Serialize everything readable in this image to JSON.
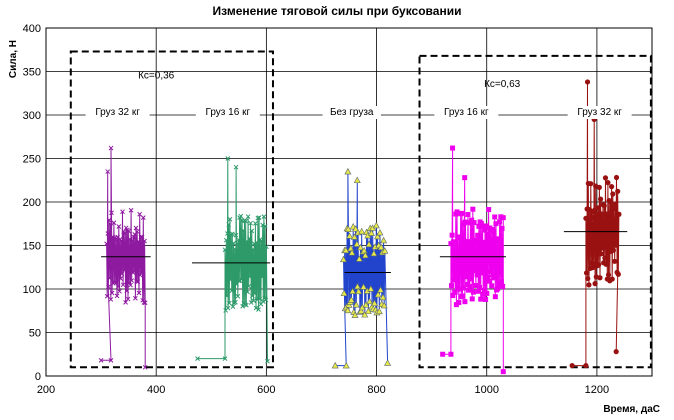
{
  "chart_data": {
    "type": "line",
    "title": "Изменение тяговой силы при буксовании",
    "xlabel": "Время, даС",
    "ylabel": "Сила, Н",
    "xlim": [
      200,
      1300
    ],
    "ylim": [
      0,
      400
    ],
    "x_ticks": [
      200,
      400,
      600,
      800,
      1000,
      1200
    ],
    "y_ticks": [
      0,
      50,
      100,
      150,
      200,
      250,
      300,
      350,
      400
    ],
    "grid": true,
    "series": [
      {
        "color": "#8e1aa0",
        "marker": "x",
        "x_range": [
          310,
          380
        ],
        "mean": 137,
        "mean_x": [
          300,
          390
        ],
        "peaks": [
          [
            318,
            262
          ],
          [
            312,
            235
          ]
        ],
        "baseline": {
          "x": [
            300,
            318
          ],
          "y": 18
        },
        "end": {
          "x": 380,
          "y": 10
        }
      },
      {
        "color": "#2e9a6a",
        "marker": "x",
        "x_range": [
          525,
          600
        ],
        "mean": 130,
        "mean_x": [
          465,
          607
        ],
        "peaks": [
          [
            530,
            250
          ],
          [
            545,
            240
          ]
        ],
        "baseline": {
          "x": [
            475,
            525
          ],
          "y": 20
        },
        "end": {
          "x": 602,
          "y": 17
        }
      },
      {
        "color": "#2244cc",
        "marker": "triangle",
        "x_range": [
          740,
          815
        ],
        "mean": 119,
        "mean_x": [
          742,
          826
        ],
        "peaks": [
          [
            748,
            235
          ],
          [
            765,
            225
          ]
        ],
        "baseline": {
          "x": [
            725,
            745
          ],
          "y": 12
        },
        "end": {
          "x": 820,
          "y": 15
        }
      },
      {
        "color": "#ee00ee",
        "marker": "square",
        "x_range": [
          935,
          1030
        ],
        "mean": 137,
        "mean_x": [
          915,
          1035
        ],
        "peaks": [
          [
            938,
            262
          ],
          [
            960,
            228
          ]
        ],
        "baseline": {
          "x": [
            920,
            935
          ],
          "y": 25
        },
        "end": {
          "x": 1030,
          "y": 5
        }
      },
      {
        "color": "#991111",
        "marker": "circle",
        "x_range": [
          1180,
          1240
        ],
        "mean": 166,
        "mean_x": [
          1140,
          1255
        ],
        "peaks": [
          [
            1183,
            338
          ],
          [
            1195,
            295
          ]
        ],
        "baseline": {
          "x": [
            1155,
            1180
          ],
          "y": 12
        },
        "end": {
          "x": 1235,
          "y": 28
        }
      }
    ],
    "annotations": {
      "group1": "Кс=0,36",
      "group2": "Кс=0,63",
      "labels": [
        "Груз 32 кг",
        "Груз 16 кг",
        "Без груза",
        "Груз 16 кг",
        "Груз 32 кг"
      ]
    },
    "dashed_groups": [
      {
        "x": [
          245,
          612
        ],
        "y": [
          10,
          373
        ]
      },
      {
        "x": [
          878,
          1298
        ],
        "y": [
          10,
          368
        ]
      }
    ]
  }
}
